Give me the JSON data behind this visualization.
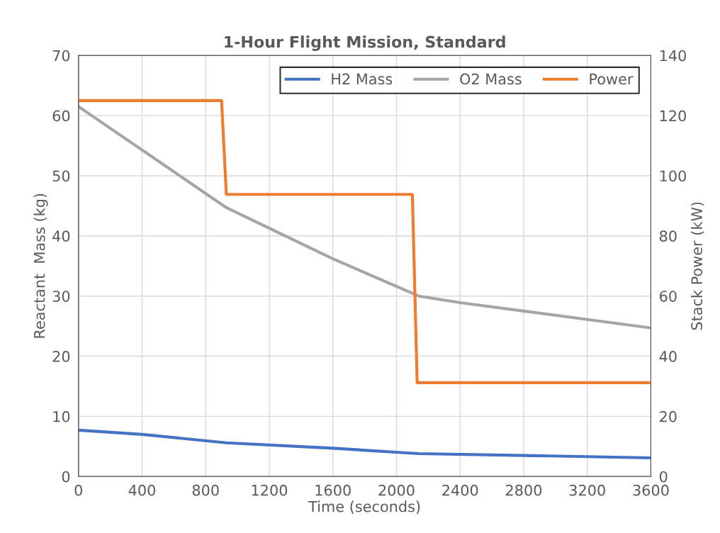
{
  "chart_data": {
    "type": "line",
    "title": "1-Hour Flight Mission, Standard",
    "xlabel": "Time (seconds)",
    "ylabel": "Reactant  Mass (kg)",
    "y2label": "Stack Power (kW)",
    "series": [
      {
        "name": "H2 Mass",
        "color": "#4472c4",
        "x": [
          0,
          400,
          930,
          1600,
          2140,
          2800,
          3600
        ],
        "values": [
          7.7,
          7.0,
          5.6,
          4.7,
          3.8,
          3.5,
          3.1
        ]
      },
      {
        "name": "O2 Mass",
        "color": "#a5a5a5",
        "x": [
          0,
          930,
          1600,
          2140,
          2400,
          2800,
          3200,
          3600
        ],
        "values": [
          61.5,
          44.7,
          36.2,
          30.0,
          28.9,
          27.5,
          26.1,
          24.7
        ]
      },
      {
        "name": "Power",
        "color": "#ed7d31",
        "axis": "y2",
        "x": [
          0,
          900,
          930,
          2100,
          2130,
          3600
        ],
        "values": [
          125,
          125,
          93.8,
          93.8,
          31.2,
          31.2
        ]
      }
    ],
    "xlim": [
      0,
      3600
    ],
    "xticks": [
      0,
      400,
      800,
      1200,
      1600,
      2000,
      2400,
      2800,
      3200,
      3600
    ],
    "ylim": [
      0,
      70
    ],
    "yticks": [
      0,
      10,
      20,
      30,
      40,
      50,
      60,
      70
    ],
    "y2lim": [
      0,
      140
    ],
    "y2ticks": [
      0,
      20,
      40,
      60,
      80,
      100,
      120,
      140
    ],
    "grid": true,
    "legend": "top right",
    "marker": "none",
    "line_style": "solid"
  }
}
